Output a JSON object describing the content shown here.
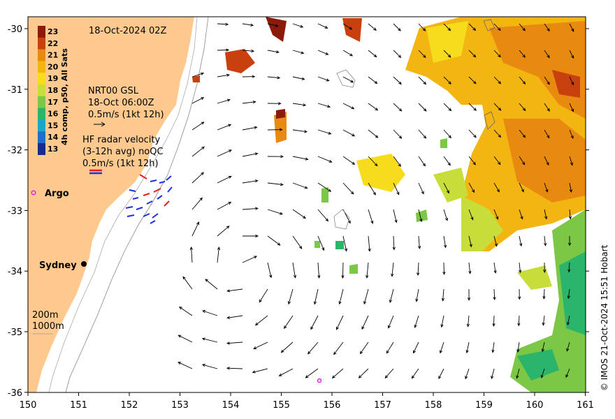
{
  "map": {
    "date_label": "18-Oct-2024 02Z",
    "gsl_label_1": "NRT00 GSL",
    "gsl_label_2": "18-Oct 06:00Z",
    "gsl_label_3": "0.5m/s (1kt 12h)",
    "hf_label_1": "HF radar velocity",
    "hf_label_2": "(3-12h avg) noQC",
    "hf_label_3": "0.5m/s (1kt 12h)",
    "colorbar_title": "4h comp, p50, All Sats",
    "colorbar_ticks": [
      "23",
      "22",
      "21",
      "20",
      "19",
      "18",
      "17",
      "16",
      "15",
      "14",
      "13"
    ],
    "colorbar_colors": [
      "#8b1a0a",
      "#c8400d",
      "#e88a10",
      "#f2b511",
      "#f6dc1d",
      "#c9dd3a",
      "#7cc745",
      "#2bb56b",
      "#1aa6c6",
      "#1f6fc8",
      "#1b2a8f"
    ],
    "argo_label": "Argo",
    "city_label": "Sydney",
    "isobath_label_1": "200m",
    "isobath_label_2": "1000m",
    "credit": "© IMOS 21-Oct-2024 15:51 Hobart",
    "x_ticks": [
      "150",
      "151",
      "152",
      "153",
      "154",
      "155",
      "156",
      "157",
      "158",
      "159",
      "160",
      "161"
    ],
    "y_ticks": [
      "-30",
      "-31",
      "-32",
      "-33",
      "-34",
      "-35",
      "-36"
    ],
    "colors": {
      "land": "#fdc98f",
      "hf_red": "#e3201b",
      "hf_blue": "#1e2fe0",
      "argo": "#e020e0"
    }
  }
}
